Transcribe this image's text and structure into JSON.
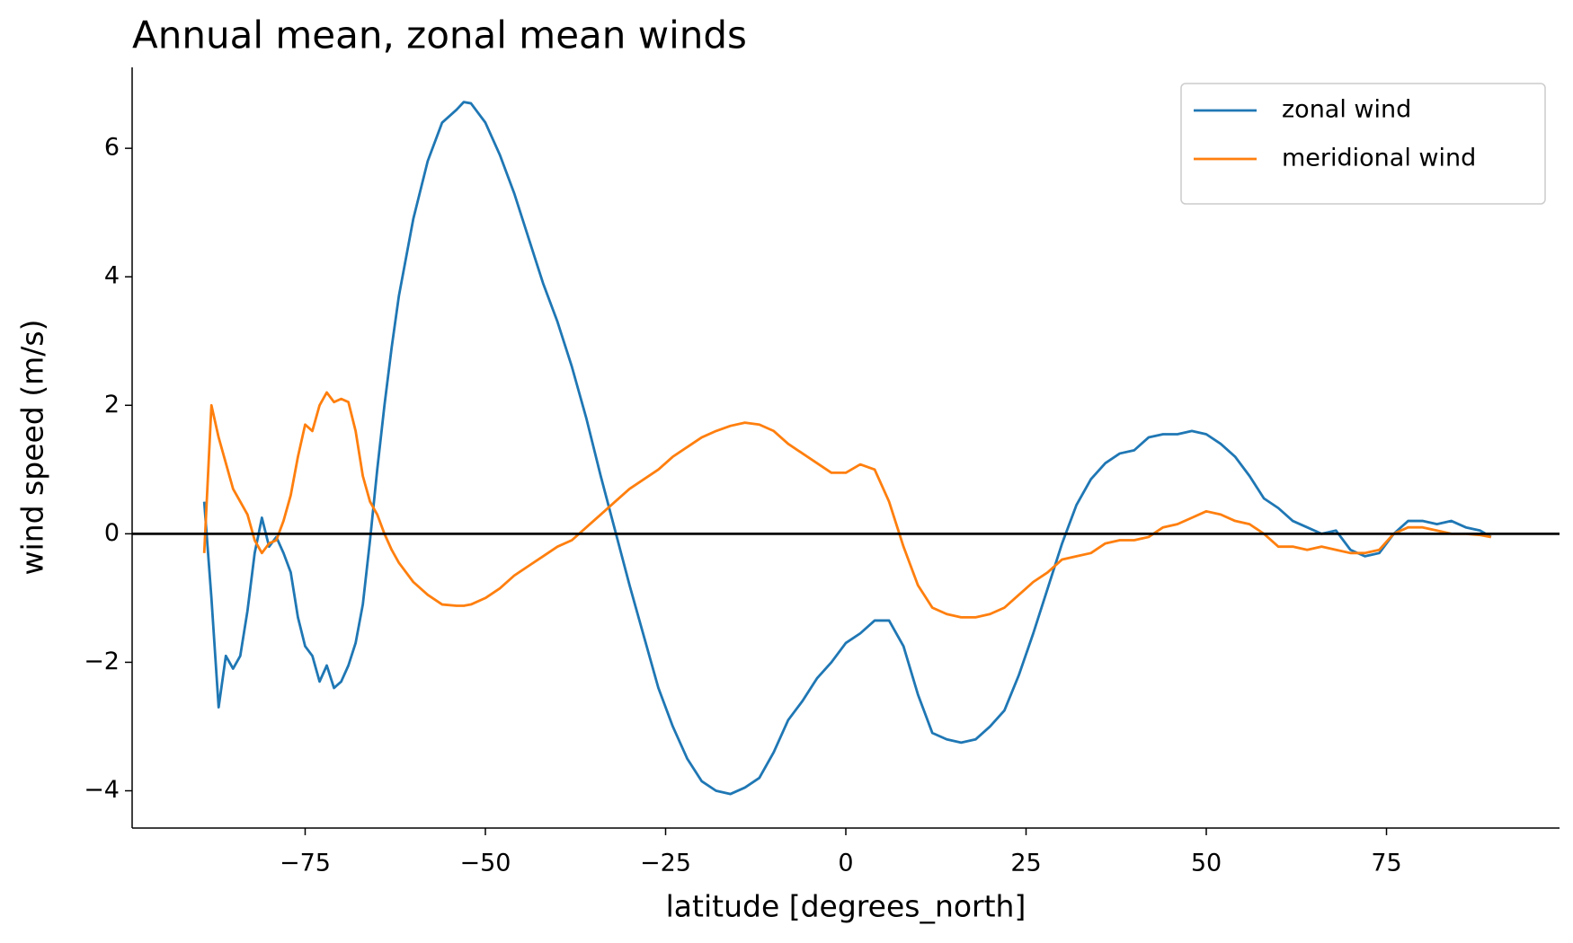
{
  "chart_data": {
    "type": "line",
    "title": "Annual mean, zonal mean winds",
    "xlabel": "latitude [degrees_north]",
    "ylabel": "wind speed (m/s)",
    "x": [
      -89,
      -88,
      -87,
      -86,
      -85,
      -84,
      -83,
      -82,
      -81,
      -80,
      -79,
      -78,
      -77,
      -76,
      -75,
      -74,
      -73,
      -72,
      -71,
      -70,
      -69,
      -68,
      -67,
      -66,
      -65,
      -64,
      -63,
      -62,
      -60,
      -58,
      -56,
      -54,
      -53,
      -52,
      -50,
      -48,
      -46,
      -44,
      -42,
      -40,
      -38,
      -36,
      -34,
      -32,
      -30,
      -28,
      -26,
      -24,
      -22,
      -20,
      -18,
      -16,
      -14,
      -12,
      -10,
      -8,
      -6,
      -4,
      -2,
      0,
      2,
      4,
      6,
      8,
      10,
      12,
      14,
      16,
      18,
      20,
      22,
      24,
      26,
      28,
      30,
      32,
      34,
      36,
      38,
      40,
      42,
      44,
      46,
      48,
      50,
      52,
      54,
      56,
      58,
      60,
      62,
      64,
      66,
      68,
      70,
      72,
      74,
      76,
      78,
      80,
      82,
      84,
      86,
      88,
      89.5
    ],
    "series": [
      {
        "name": "zonal wind",
        "color": "#1f77b4",
        "values": [
          0.5,
          -1.0,
          -2.7,
          -1.9,
          -2.1,
          -1.9,
          -1.2,
          -0.3,
          0.25,
          -0.2,
          -0.05,
          -0.3,
          -0.6,
          -1.3,
          -1.75,
          -1.9,
          -2.3,
          -2.05,
          -2.4,
          -2.3,
          -2.05,
          -1.7,
          -1.1,
          -0.1,
          1.0,
          2.0,
          2.9,
          3.7,
          4.9,
          5.8,
          6.4,
          6.6,
          6.72,
          6.7,
          6.4,
          5.9,
          5.3,
          4.6,
          3.9,
          3.3,
          2.6,
          1.8,
          0.9,
          0.05,
          -0.8,
          -1.6,
          -2.4,
          -3.0,
          -3.5,
          -3.85,
          -4.0,
          -4.05,
          -3.95,
          -3.8,
          -3.4,
          -2.9,
          -2.6,
          -2.25,
          -2.0,
          -1.7,
          -1.55,
          -1.35,
          -1.35,
          -1.75,
          -2.5,
          -3.1,
          -3.2,
          -3.25,
          -3.2,
          -3.0,
          -2.75,
          -2.2,
          -1.55,
          -0.85,
          -0.15,
          0.45,
          0.85,
          1.1,
          1.25,
          1.3,
          1.5,
          1.55,
          1.55,
          1.6,
          1.55,
          1.4,
          1.2,
          0.9,
          0.55,
          0.4,
          0.2,
          0.1,
          0.0,
          0.05,
          -0.25,
          -0.35,
          -0.3,
          0.0,
          0.2,
          0.2,
          0.15,
          0.2,
          0.1,
          0.05,
          -0.05
        ]
      },
      {
        "name": "meridional wind",
        "color": "#ff7f0e",
        "values": [
          -0.3,
          2.0,
          1.5,
          1.1,
          0.7,
          0.5,
          0.3,
          -0.1,
          -0.3,
          -0.15,
          -0.1,
          0.2,
          0.6,
          1.2,
          1.7,
          1.6,
          2.0,
          2.2,
          2.05,
          2.1,
          2.05,
          1.6,
          0.9,
          0.5,
          0.3,
          0.0,
          -0.25,
          -0.45,
          -0.75,
          -0.95,
          -1.1,
          -1.12,
          -1.12,
          -1.1,
          -1.0,
          -0.85,
          -0.65,
          -0.5,
          -0.35,
          -0.2,
          -0.1,
          0.1,
          0.3,
          0.5,
          0.7,
          0.85,
          1.0,
          1.2,
          1.35,
          1.5,
          1.6,
          1.68,
          1.73,
          1.7,
          1.6,
          1.4,
          1.25,
          1.1,
          0.95,
          0.95,
          1.08,
          1.0,
          0.5,
          -0.2,
          -0.8,
          -1.15,
          -1.25,
          -1.3,
          -1.3,
          -1.25,
          -1.15,
          -0.95,
          -0.75,
          -0.6,
          -0.4,
          -0.35,
          -0.3,
          -0.15,
          -0.1,
          -0.1,
          -0.05,
          0.1,
          0.15,
          0.25,
          0.35,
          0.3,
          0.2,
          0.15,
          0.0,
          -0.2,
          -0.2,
          -0.25,
          -0.2,
          -0.25,
          -0.3,
          -0.3,
          -0.25,
          0.0,
          0.1,
          0.1,
          0.05,
          0.0,
          0.0,
          -0.02,
          -0.05
        ]
      }
    ],
    "hlines": [
      0
    ],
    "xlim": [
      -99,
      99
    ],
    "ylim": [
      -4.58,
      7.26
    ],
    "xticks": [
      {
        "value": -75,
        "label": "−75"
      },
      {
        "value": -50,
        "label": "−50"
      },
      {
        "value": -25,
        "label": "−25"
      },
      0,
      25,
      50,
      75
    ],
    "yticks": [
      {
        "value": -4,
        "label": "−4"
      },
      {
        "value": -2,
        "label": "−2"
      },
      0,
      2,
      4,
      6
    ],
    "legend": "upper right"
  }
}
